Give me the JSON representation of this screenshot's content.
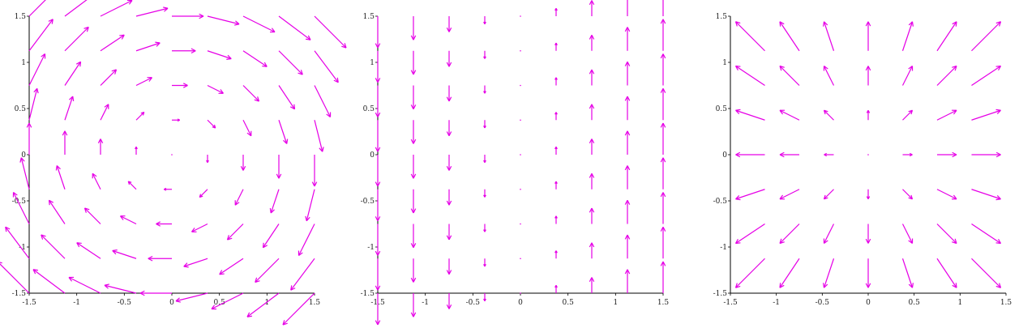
{
  "colors": {
    "arrow": "#e600e6",
    "axis": "#000000"
  },
  "chart_data": [
    {
      "type": "quiver",
      "field": "rotation",
      "vector_field": [
        "y",
        "-x"
      ],
      "xlim": [
        -1.5,
        1.5
      ],
      "ylim": [
        -1.5,
        1.5
      ],
      "xticks": [
        "-1.5",
        "-1",
        "-0.5",
        "0",
        "0.5",
        "1",
        "1.5"
      ],
      "yticks": [
        "1.5",
        "1",
        "0.5",
        "0",
        "-0.5",
        "-1",
        "-1.5"
      ],
      "x_tick_values": [
        -1.5,
        -1,
        -0.5,
        0,
        0.5,
        1,
        1.5
      ],
      "y_tick_values": [
        1.5,
        1,
        0.5,
        0,
        -0.5,
        -1,
        -1.5
      ],
      "grid": false,
      "sample_points": [
        -1.5,
        -1.125,
        -0.75,
        -0.375,
        0,
        0.375,
        0.75,
        1.125,
        1.5
      ]
    },
    {
      "type": "quiver",
      "field": "shear",
      "vector_field": [
        "0",
        "x"
      ],
      "xlim": [
        -1.5,
        1.5
      ],
      "ylim": [
        -1.5,
        1.5
      ],
      "xticks": [
        "-1.5",
        "-1",
        "-0.5",
        "0",
        "0.5",
        "1",
        "1.5"
      ],
      "yticks": [
        "1.5",
        "1",
        "0.5",
        "0",
        "-0.5",
        "-1",
        "-1.5"
      ],
      "x_tick_values": [
        -1.5,
        -1,
        -0.5,
        0,
        0.5,
        1,
        1.5
      ],
      "y_tick_values": [
        1.5,
        1,
        0.5,
        0,
        -0.5,
        -1,
        -1.5
      ],
      "grid": false,
      "sample_points": [
        -1.5,
        -1.125,
        -0.75,
        -0.375,
        0,
        0.375,
        0.75,
        1.125,
        1.5
      ]
    },
    {
      "type": "quiver",
      "field": "radial",
      "vector_field": [
        "x",
        "y"
      ],
      "xlim": [
        -1.5,
        1.5
      ],
      "ylim": [
        -1.5,
        1.5
      ],
      "xticks": [
        "-1.5",
        "-1",
        "-0.5",
        "0",
        "0.5",
        "1",
        "1.5"
      ],
      "yticks": [
        "1.5",
        "1",
        "0.5",
        "0",
        "-0.5",
        "-1",
        "-1.5"
      ],
      "x_tick_values": [
        -1.5,
        -1,
        -0.5,
        0,
        0.5,
        1,
        1.5
      ],
      "y_tick_values": [
        1.5,
        1,
        0.5,
        0,
        -0.5,
        -1,
        -1.5
      ],
      "grid": false,
      "sample_points": [
        -1.125,
        -0.75,
        -0.375,
        0,
        0.375,
        0.75,
        1.125
      ]
    }
  ]
}
